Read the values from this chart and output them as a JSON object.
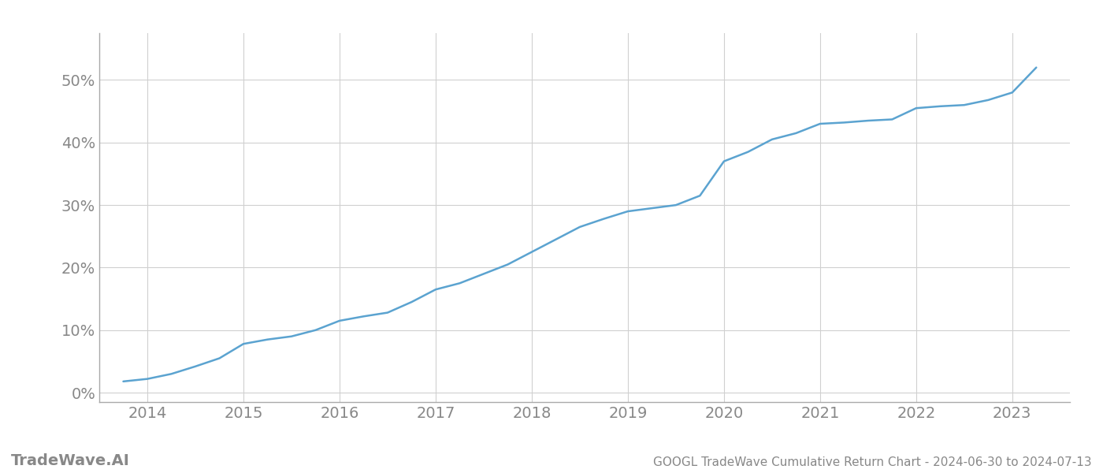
{
  "x_values": [
    2013.75,
    2014.0,
    2014.25,
    2014.5,
    2014.75,
    2015.0,
    2015.25,
    2015.5,
    2015.75,
    2016.0,
    2016.25,
    2016.5,
    2016.75,
    2017.0,
    2017.25,
    2017.5,
    2017.75,
    2018.0,
    2018.25,
    2018.5,
    2018.75,
    2019.0,
    2019.25,
    2019.5,
    2019.75,
    2020.0,
    2020.25,
    2020.5,
    2020.75,
    2021.0,
    2021.25,
    2021.5,
    2021.75,
    2022.0,
    2022.25,
    2022.5,
    2022.75,
    2023.0,
    2023.25
  ],
  "y_values": [
    0.018,
    0.022,
    0.03,
    0.042,
    0.055,
    0.078,
    0.085,
    0.09,
    0.1,
    0.115,
    0.122,
    0.128,
    0.145,
    0.165,
    0.175,
    0.19,
    0.205,
    0.225,
    0.245,
    0.265,
    0.278,
    0.29,
    0.295,
    0.3,
    0.315,
    0.37,
    0.385,
    0.405,
    0.415,
    0.43,
    0.432,
    0.435,
    0.437,
    0.455,
    0.458,
    0.46,
    0.468,
    0.48,
    0.52
  ],
  "line_color": "#5ba3d0",
  "background_color": "#ffffff",
  "grid_color": "#d0d0d0",
  "spine_color": "#aaaaaa",
  "tick_label_color": "#888888",
  "xlabel_ticks": [
    2014,
    2015,
    2016,
    2017,
    2018,
    2019,
    2020,
    2021,
    2022,
    2023
  ],
  "ylabel_ticks": [
    0.0,
    0.1,
    0.2,
    0.3,
    0.4,
    0.5
  ],
  "ylabel_labels": [
    "0%",
    "10%",
    "20%",
    "30%",
    "40%",
    "50%"
  ],
  "xlim": [
    2013.5,
    2023.6
  ],
  "ylim": [
    -0.015,
    0.575
  ],
  "title": "GOOGL TradeWave Cumulative Return Chart - 2024-06-30 to 2024-07-13",
  "watermark": "TradeWave.AI",
  "line_width": 1.8,
  "title_fontsize": 11,
  "tick_fontsize": 14,
  "watermark_fontsize": 14
}
